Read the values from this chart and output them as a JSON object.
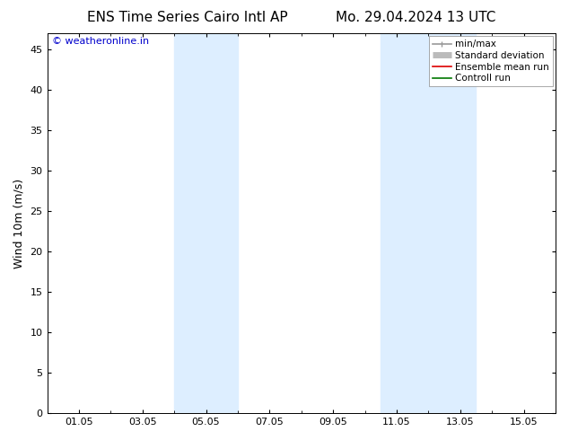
{
  "title_left": "ENS Time Series Cairo Intl AP",
  "title_right": "Mo. 29.04.2024 13 UTC",
  "ylabel": "Wind 10m (m/s)",
  "ylim": [
    0,
    47
  ],
  "yticks": [
    0,
    5,
    10,
    15,
    20,
    25,
    30,
    35,
    40,
    45
  ],
  "xtick_labels": [
    "01.05",
    "03.05",
    "05.05",
    "07.05",
    "09.05",
    "11.05",
    "13.05",
    "15.05"
  ],
  "xtick_positions": [
    1,
    3,
    5,
    7,
    9,
    11,
    13,
    15
  ],
  "xlim": [
    0,
    16
  ],
  "shaded_bands": [
    {
      "x_start": 4.0,
      "x_end": 6.0
    },
    {
      "x_start": 10.5,
      "x_end": 13.5
    }
  ],
  "shaded_color": "#ddeeff",
  "watermark_text": "© weatheronline.in",
  "watermark_color": "#0000cc",
  "legend_entries": [
    {
      "label": "min/max",
      "color": "#999999",
      "lw": 1.2
    },
    {
      "label": "Standard deviation",
      "color": "#bbbbbb",
      "lw": 5
    },
    {
      "label": "Ensemble mean run",
      "color": "#dd0000",
      "lw": 1.2
    },
    {
      "label": "Controll run",
      "color": "#007700",
      "lw": 1.2
    }
  ],
  "background_color": "#ffffff",
  "title_fontsize": 11,
  "label_fontsize": 9,
  "tick_fontsize": 8,
  "watermark_fontsize": 8,
  "legend_fontsize": 7.5
}
